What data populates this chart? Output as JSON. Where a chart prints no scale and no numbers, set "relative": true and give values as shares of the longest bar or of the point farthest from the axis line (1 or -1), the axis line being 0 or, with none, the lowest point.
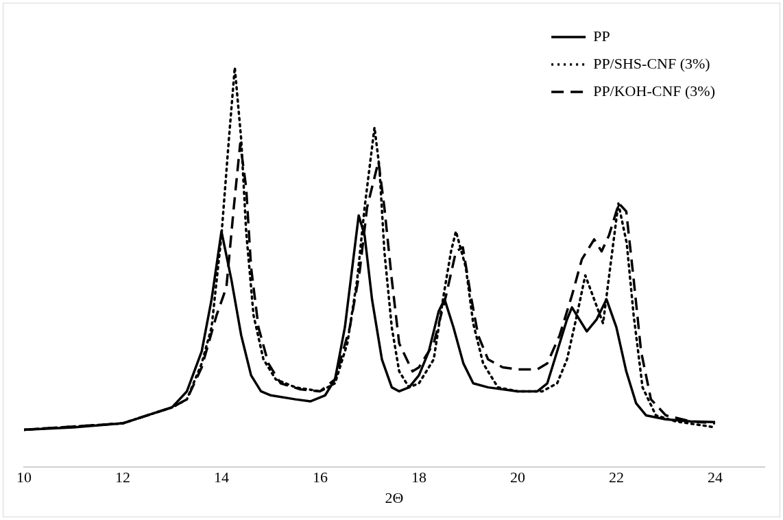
{
  "chart_data": {
    "type": "line",
    "xlabel": "2Θ",
    "relative": true,
    "xlim": [
      10,
      25
    ],
    "xticks": [
      10,
      12,
      14,
      16,
      18,
      20,
      22,
      24
    ],
    "grid": false,
    "legend": "top right",
    "marker": "none",
    "series": [
      {
        "name": "PP",
        "color": "#000000",
        "line_style": "solid",
        "x": [
          10,
          11,
          12,
          12.5,
          13,
          13.3,
          13.6,
          13.8,
          14,
          14.2,
          14.4,
          14.6,
          14.8,
          15,
          15.5,
          15.8,
          16.1,
          16.3,
          16.5,
          16.65,
          16.78,
          16.9,
          17.05,
          17.25,
          17.45,
          17.6,
          17.8,
          18,
          18.2,
          18.4,
          18.52,
          18.7,
          18.9,
          19.1,
          19.4,
          20,
          20.4,
          20.6,
          20.8,
          21,
          21.1,
          21.4,
          21.6,
          21.8,
          22,
          22.2,
          22.4,
          22.6,
          23,
          23.5,
          24
        ],
        "values": [
          0.094,
          0.1,
          0.11,
          0.13,
          0.15,
          0.19,
          0.29,
          0.42,
          0.59,
          0.47,
          0.33,
          0.23,
          0.19,
          0.18,
          0.17,
          0.165,
          0.18,
          0.22,
          0.35,
          0.5,
          0.63,
          0.58,
          0.42,
          0.27,
          0.2,
          0.19,
          0.2,
          0.23,
          0.29,
          0.39,
          0.42,
          0.35,
          0.26,
          0.21,
          0.2,
          0.19,
          0.19,
          0.21,
          0.29,
          0.37,
          0.4,
          0.34,
          0.37,
          0.42,
          0.35,
          0.24,
          0.16,
          0.13,
          0.12,
          0.115,
          0.113
        ]
      },
      {
        "name": "PP/SHS-CNF (3%)",
        "color": "#000000",
        "line_style": "dotted",
        "x": [
          10,
          12,
          13,
          13.3,
          13.6,
          13.8,
          14,
          14.15,
          14.27,
          14.4,
          14.5,
          14.65,
          14.85,
          15.1,
          15.5,
          16,
          16.3,
          16.55,
          16.75,
          16.9,
          17.1,
          17.2,
          17.3,
          17.45,
          17.6,
          17.8,
          18,
          18.3,
          18.5,
          18.65,
          18.75,
          18.95,
          19.1,
          19.3,
          19.6,
          20,
          20.5,
          20.8,
          21,
          21.2,
          21.37,
          21.73,
          22.04,
          22.21,
          22.35,
          22.53,
          22.8,
          23.2,
          24
        ],
        "values": [
          0.094,
          0.11,
          0.15,
          0.17,
          0.26,
          0.35,
          0.58,
          0.82,
          1,
          0.82,
          0.59,
          0.38,
          0.27,
          0.22,
          0.2,
          0.19,
          0.21,
          0.31,
          0.47,
          0.65,
          0.85,
          0.75,
          0.54,
          0.35,
          0.24,
          0.2,
          0.21,
          0.27,
          0.43,
          0.54,
          0.59,
          0.5,
          0.36,
          0.26,
          0.2,
          0.19,
          0.19,
          0.21,
          0.27,
          0.38,
          0.48,
          0.36,
          0.66,
          0.56,
          0.38,
          0.2,
          0.13,
          0.115,
          0.1
        ]
      },
      {
        "name": "PP/KOH-CNF (3%)",
        "color": "#000000",
        "line_style": "dashed",
        "x": [
          10,
          12,
          13,
          13.3,
          13.6,
          13.9,
          14.1,
          14.25,
          14.38,
          14.5,
          14.6,
          14.75,
          14.95,
          15.2,
          15.6,
          16,
          16.3,
          16.6,
          16.8,
          16.95,
          17.18,
          17.3,
          17.45,
          17.6,
          17.87,
          18,
          18.3,
          18.55,
          18.75,
          18.89,
          19.05,
          19.2,
          19.4,
          19.7,
          20,
          20.4,
          20.6,
          20.85,
          21.1,
          21.3,
          21.55,
          21.7,
          21.85,
          22.05,
          22.2,
          22.35,
          22.5,
          22.7,
          23,
          23.5,
          24
        ],
        "values": [
          0.094,
          0.11,
          0.15,
          0.17,
          0.25,
          0.38,
          0.45,
          0.65,
          0.81,
          0.7,
          0.5,
          0.35,
          0.26,
          0.21,
          0.195,
          0.19,
          0.22,
          0.35,
          0.49,
          0.65,
          0.765,
          0.65,
          0.47,
          0.31,
          0.24,
          0.25,
          0.31,
          0.43,
          0.54,
          0.55,
          0.43,
          0.33,
          0.27,
          0.25,
          0.245,
          0.245,
          0.26,
          0.33,
          0.43,
          0.52,
          0.57,
          0.54,
          0.58,
          0.66,
          0.64,
          0.47,
          0.29,
          0.17,
          0.13,
          0.115,
          0.11
        ]
      }
    ]
  }
}
